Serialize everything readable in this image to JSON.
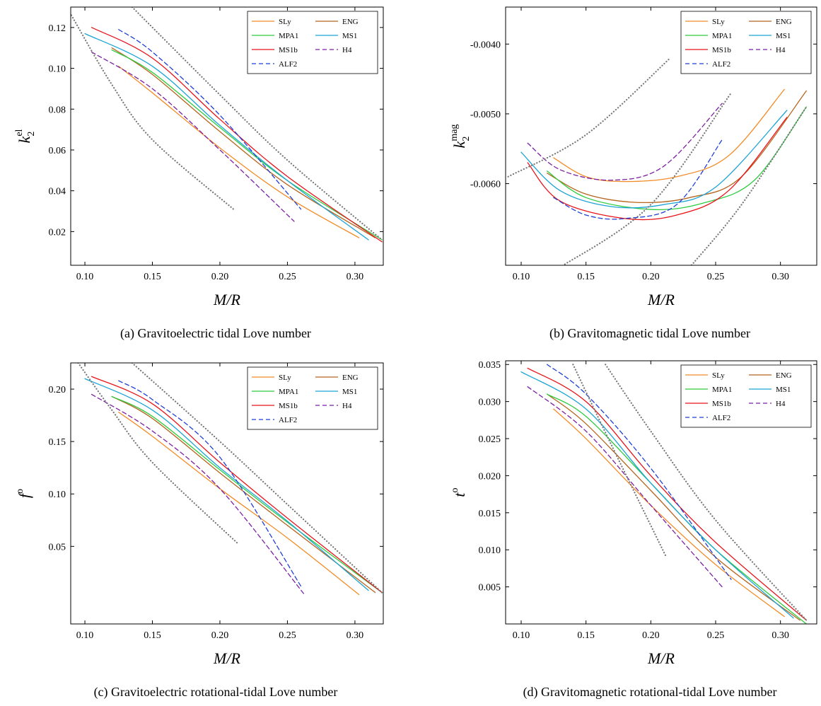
{
  "chart_data": [
    {
      "type": "line",
      "caption": "(a) Gravitoelectric tidal Love number",
      "xlabel": "M/R",
      "ylabel": {
        "base": "k",
        "sub": "2",
        "sup": "el"
      },
      "xlim": [
        0.0895,
        0.321
      ],
      "ylim": [
        0.0035,
        0.13
      ],
      "legend": "upper right",
      "xticks": [
        {
          "value": 0.1,
          "label": "0.10"
        },
        0.15,
        {
          "value": 0.2,
          "label": "0.20"
        },
        0.25,
        {
          "value": 0.3,
          "label": "0.30"
        }
      ],
      "yticks": [
        0.02,
        0.04,
        0.06,
        0.08,
        {
          "value": 0.1,
          "label": "0.10"
        },
        0.12
      ],
      "series": [
        {
          "name": "SLy",
          "color": "#f28c28",
          "dash": "solid",
          "x": [
            0.125,
            0.15,
            0.2,
            0.25,
            0.303
          ],
          "values": [
            0.101,
            0.088,
            0.061,
            0.037,
            0.017
          ]
        },
        {
          "name": "ENG",
          "color": "#b5651d",
          "dash": "solid",
          "x": [
            0.12,
            0.15,
            0.2,
            0.25,
            0.315
          ],
          "values": [
            0.11,
            0.097,
            0.069,
            0.043,
            0.017
          ]
        },
        {
          "name": "MPA1",
          "color": "#2ecc40",
          "dash": "solid",
          "x": [
            0.12,
            0.15,
            0.2,
            0.25,
            0.32
          ],
          "values": [
            0.109,
            0.098,
            0.071,
            0.045,
            0.016
          ]
        },
        {
          "name": "MS1",
          "color": "#1ca3d6",
          "dash": "solid",
          "x": [
            0.1,
            0.15,
            0.2,
            0.25,
            0.31
          ],
          "values": [
            0.117,
            0.101,
            0.072,
            0.045,
            0.016
          ]
        },
        {
          "name": "MS1b",
          "color": "#e8141a",
          "dash": "solid",
          "x": [
            0.105,
            0.15,
            0.2,
            0.25,
            0.32
          ],
          "values": [
            0.12,
            0.105,
            0.075,
            0.047,
            0.015
          ]
        },
        {
          "name": "H4",
          "color": "#7b1fa2",
          "dash": "dashed",
          "x": [
            0.105,
            0.15,
            0.2,
            0.255
          ],
          "values": [
            0.108,
            0.09,
            0.06,
            0.025
          ]
        },
        {
          "name": "ALF2",
          "color": "#1f3fd6",
          "dash": "dashed",
          "x": [
            0.125,
            0.15,
            0.2,
            0.26
          ],
          "values": [
            0.119,
            0.108,
            0.077,
            0.031
          ]
        },
        {
          "color": "#777777",
          "dash": "dotted",
          "x": [
            0.135,
            0.2,
            0.25,
            0.32
          ],
          "values": [
            0.13,
            0.087,
            0.055,
            0.016
          ]
        },
        {
          "color": "#777777",
          "dash": "dotted",
          "x": [
            0.09,
            0.12,
            0.15,
            0.21
          ],
          "values": [
            0.126,
            0.092,
            0.065,
            0.031
          ]
        }
      ]
    },
    {
      "type": "line",
      "caption": "(b) Gravitomagnetic tidal Love number",
      "xlabel": "M/R",
      "ylabel": {
        "base": "k",
        "sub": "2",
        "sup": "mag"
      },
      "xlim": [
        0.088,
        0.328
      ],
      "ylim": [
        -0.00717,
        -0.00347
      ],
      "legend": "upper right",
      "xticks": [
        {
          "value": 0.1,
          "label": "0.10"
        },
        0.15,
        {
          "value": 0.2,
          "label": "0.20"
        },
        0.25,
        {
          "value": 0.3,
          "label": "0.30"
        }
      ],
      "yticks": [
        {
          "value": -0.006,
          "label": "-0.0060"
        },
        {
          "value": -0.005,
          "label": "-0.0050"
        },
        {
          "value": -0.004,
          "label": "-0.0040"
        }
      ],
      "series": [
        {
          "name": "SLy",
          "color": "#f28c28",
          "dash": "solid",
          "x": [
            0.125,
            0.15,
            0.18,
            0.22,
            0.26,
            0.303
          ],
          "values": [
            -0.00563,
            -0.0059,
            -0.00597,
            -0.0059,
            -0.0056,
            -0.00465
          ]
        },
        {
          "name": "ENG",
          "color": "#b5651d",
          "dash": "solid",
          "x": [
            0.12,
            0.15,
            0.19,
            0.23,
            0.27,
            0.32
          ],
          "values": [
            -0.00585,
            -0.00615,
            -0.00627,
            -0.0062,
            -0.0059,
            -0.00467
          ]
        },
        {
          "name": "MPA1",
          "color": "#2ecc40",
          "dash": "solid",
          "x": [
            0.12,
            0.15,
            0.2,
            0.24,
            0.28,
            0.32
          ],
          "values": [
            -0.00582,
            -0.0062,
            -0.00637,
            -0.00628,
            -0.00595,
            -0.0049
          ]
        },
        {
          "name": "MS1",
          "color": "#1ca3d6",
          "dash": "solid",
          "x": [
            0.1,
            0.13,
            0.17,
            0.21,
            0.25,
            0.305
          ],
          "values": [
            -0.00555,
            -0.0061,
            -0.00633,
            -0.0063,
            -0.00605,
            -0.00495
          ]
        },
        {
          "name": "MS1b",
          "color": "#e8141a",
          "dash": "solid",
          "x": [
            0.105,
            0.13,
            0.18,
            0.22,
            0.26,
            0.305
          ],
          "values": [
            -0.0057,
            -0.00625,
            -0.0065,
            -0.00645,
            -0.0061,
            -0.00505
          ]
        },
        {
          "name": "H4",
          "color": "#7b1fa2",
          "dash": "dashed",
          "x": [
            0.105,
            0.13,
            0.17,
            0.21,
            0.255
          ],
          "values": [
            -0.00542,
            -0.0058,
            -0.00595,
            -0.00575,
            -0.00485
          ]
        },
        {
          "name": "ALF2",
          "color": "#1f3fd6",
          "dash": "dashed",
          "x": [
            0.125,
            0.15,
            0.18,
            0.22,
            0.255
          ],
          "values": [
            -0.0062,
            -0.00645,
            -0.0065,
            -0.0063,
            -0.00537
          ]
        },
        {
          "color": "#777777",
          "dash": "dotted",
          "x": [
            0.09,
            0.15,
            0.215
          ],
          "values": [
            -0.0059,
            -0.0053,
            -0.0042
          ]
        },
        {
          "color": "#777777",
          "dash": "dotted",
          "x": [
            0.13,
            0.2,
            0.262
          ],
          "values": [
            -0.0072,
            -0.0063,
            -0.0047
          ]
        },
        {
          "color": "#777777",
          "dash": "dotted",
          "x": [
            0.23,
            0.27,
            0.32
          ],
          "values": [
            -0.0072,
            -0.0063,
            -0.0049
          ]
        }
      ]
    },
    {
      "type": "line",
      "caption": "(c) Gravitoelectric rotational-tidal Love number",
      "xlabel": "M/R",
      "ylabel": {
        "base": "f",
        "sup": "o"
      },
      "xlim": [
        0.0895,
        0.321
      ],
      "ylim": [
        -0.024,
        0.225
      ],
      "legend": "upper right",
      "xticks": [
        {
          "value": 0.1,
          "label": "0.10"
        },
        0.15,
        {
          "value": 0.2,
          "label": "0.20"
        },
        0.25,
        {
          "value": 0.3,
          "label": "0.30"
        }
      ],
      "yticks": [
        0.05,
        {
          "value": 0.1,
          "label": "0.10"
        },
        0.15,
        {
          "value": 0.2,
          "label": "0.20"
        }
      ],
      "series": [
        {
          "name": "SLy",
          "color": "#f28c28",
          "dash": "solid",
          "x": [
            0.125,
            0.15,
            0.2,
            0.25,
            0.303
          ],
          "values": [
            0.178,
            0.155,
            0.105,
            0.058,
            0.004
          ]
        },
        {
          "name": "ENG",
          "color": "#b5651d",
          "dash": "solid",
          "x": [
            0.12,
            0.15,
            0.2,
            0.25,
            0.315
          ],
          "values": [
            0.193,
            0.172,
            0.12,
            0.07,
            0.006
          ]
        },
        {
          "name": "MPA1",
          "color": "#2ecc40",
          "dash": "solid",
          "x": [
            0.12,
            0.15,
            0.2,
            0.25,
            0.32
          ],
          "values": [
            0.193,
            0.174,
            0.123,
            0.073,
            0.006
          ]
        },
        {
          "name": "MS1",
          "color": "#1ca3d6",
          "dash": "solid",
          "x": [
            0.1,
            0.15,
            0.2,
            0.25,
            0.31
          ],
          "values": [
            0.21,
            0.18,
            0.125,
            0.074,
            0.008
          ]
        },
        {
          "name": "MS1b",
          "color": "#e8141a",
          "dash": "solid",
          "x": [
            0.105,
            0.15,
            0.2,
            0.25,
            0.32
          ],
          "values": [
            0.212,
            0.186,
            0.13,
            0.077,
            0.006
          ]
        },
        {
          "name": "H4",
          "color": "#7b1fa2",
          "dash": "dashed",
          "x": [
            0.105,
            0.15,
            0.2,
            0.262
          ],
          "values": [
            0.195,
            0.16,
            0.105,
            0.005
          ]
        },
        {
          "name": "ALF2",
          "color": "#1f3fd6",
          "dash": "dashed",
          "x": [
            0.125,
            0.15,
            0.2,
            0.26
          ],
          "values": [
            0.208,
            0.19,
            0.135,
            0.012
          ]
        },
        {
          "color": "#777777",
          "dash": "dotted",
          "x": [
            0.135,
            0.2,
            0.25,
            0.32
          ],
          "values": [
            0.225,
            0.15,
            0.09,
            0.006
          ]
        },
        {
          "color": "#777777",
          "dash": "dotted",
          "x": [
            0.095,
            0.12,
            0.15,
            0.213
          ],
          "values": [
            0.225,
            0.18,
            0.13,
            0.053
          ]
        }
      ]
    },
    {
      "type": "line",
      "caption": "(d) Gravitomagnetic rotational-tidal Love number",
      "xlabel": "M/R",
      "ylabel": {
        "base": "t",
        "sup": "o"
      },
      "xlim": [
        0.088,
        0.328
      ],
      "ylim": [
        0,
        0.0355
      ],
      "legend": "upper right",
      "xticks": [
        {
          "value": 0.1,
          "label": "0.10"
        },
        0.15,
        {
          "value": 0.2,
          "label": "0.20"
        },
        0.25,
        {
          "value": 0.3,
          "label": "0.30"
        }
      ],
      "yticks": [
        0.005,
        {
          "value": 0.01,
          "label": "0.010"
        },
        0.015,
        {
          "value": 0.02,
          "label": "0.020"
        },
        0.025,
        {
          "value": 0.03,
          "label": "0.030"
        },
        0.035
      ],
      "series": [
        {
          "name": "SLy",
          "color": "#f28c28",
          "dash": "solid",
          "x": [
            0.125,
            0.15,
            0.2,
            0.25,
            0.303
          ],
          "values": [
            0.029,
            0.025,
            0.016,
            0.008,
            0.001
          ]
        },
        {
          "name": "ENG",
          "color": "#b5651d",
          "dash": "solid",
          "x": [
            0.12,
            0.15,
            0.2,
            0.25,
            0.315
          ],
          "values": [
            0.031,
            0.027,
            0.018,
            0.009,
            0.0005
          ]
        },
        {
          "name": "MPA1",
          "color": "#2ecc40",
          "dash": "solid",
          "x": [
            0.12,
            0.15,
            0.2,
            0.25,
            0.32
          ],
          "values": [
            0.031,
            0.028,
            0.019,
            0.01,
            0
          ]
        },
        {
          "name": "MS1",
          "color": "#1ca3d6",
          "dash": "solid",
          "x": [
            0.1,
            0.15,
            0.2,
            0.25,
            0.31
          ],
          "values": [
            0.034,
            0.029,
            0.019,
            0.01,
            0.0008
          ]
        },
        {
          "name": "MS1b",
          "color": "#e8141a",
          "dash": "solid",
          "x": [
            0.105,
            0.15,
            0.2,
            0.25,
            0.32
          ],
          "values": [
            0.0345,
            0.03,
            0.02,
            0.011,
            0.0005
          ]
        },
        {
          "name": "H4",
          "color": "#7b1fa2",
          "dash": "dashed",
          "x": [
            0.105,
            0.15,
            0.2,
            0.255
          ],
          "values": [
            0.032,
            0.026,
            0.016,
            0.005
          ]
        },
        {
          "name": "ALF2",
          "color": "#1f3fd6",
          "dash": "dashed",
          "x": [
            0.12,
            0.15,
            0.2,
            0.262
          ],
          "values": [
            0.035,
            0.031,
            0.021,
            0.006
          ]
        },
        {
          "color": "#777777",
          "dash": "dotted",
          "x": [
            0.165,
            0.2,
            0.25,
            0.32
          ],
          "values": [
            0.035,
            0.026,
            0.014,
            0.0005
          ]
        },
        {
          "color": "#777777",
          "dash": "dotted",
          "x": [
            0.14,
            0.17,
            0.212
          ],
          "values": [
            0.035,
            0.024,
            0.009
          ]
        }
      ]
    }
  ]
}
